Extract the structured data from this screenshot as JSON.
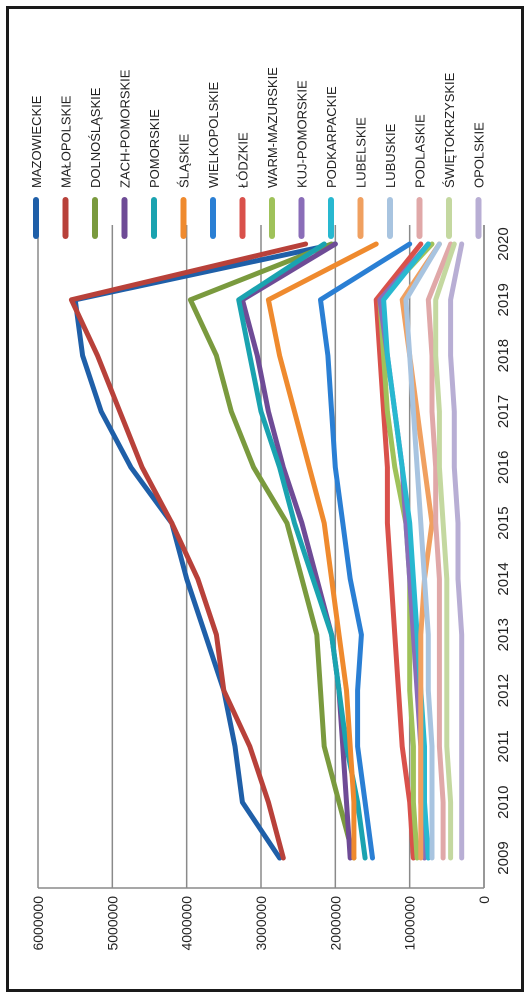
{
  "chart_data": {
    "type": "line",
    "x": [
      "2009",
      "2010",
      "2011",
      "2012",
      "2013",
      "2014",
      "2015",
      "2016",
      "2017",
      "2018",
      "2019",
      "2020"
    ],
    "ylim": [
      0,
      6000000
    ],
    "yticks": [
      "0",
      "1000000",
      "2000000",
      "3000000",
      "4000000",
      "5000000",
      "6000000"
    ],
    "grid": true,
    "legend_position": "top",
    "series": [
      {
        "name": "MAZOWIECKIE",
        "color": "#1f5fa8",
        "values": [
          2750000,
          3250000,
          3350000,
          3500000,
          3750000,
          4000000,
          4200000,
          4750000,
          5150000,
          5400000,
          5500000,
          2000000
        ]
      },
      {
        "name": "MAŁOPOLSKIE",
        "color": "#b8413a",
        "values": [
          2700000,
          2900000,
          3150000,
          3500000,
          3600000,
          3850000,
          4200000,
          4600000,
          4900000,
          5200000,
          5550000,
          2400000
        ]
      },
      {
        "name": "DOLNOŚLĄSKIE",
        "color": "#7a9a3e",
        "values": [
          1750000,
          1950000,
          2150000,
          2200000,
          2250000,
          2450000,
          2650000,
          3100000,
          3400000,
          3600000,
          3950000,
          2050000
        ]
      },
      {
        "name": "ZACH-POMORSKIE",
        "color": "#6e4b96",
        "values": [
          1800000,
          1850000,
          1900000,
          1950000,
          2050000,
          2250000,
          2450000,
          2700000,
          2900000,
          3050000,
          3250000,
          2000000
        ]
      },
      {
        "name": "POMORSKIE",
        "color": "#1aa3b0",
        "values": [
          1600000,
          1700000,
          1850000,
          1950000,
          2050000,
          2300000,
          2550000,
          2750000,
          3000000,
          3150000,
          3300000,
          2150000
        ]
      },
      {
        "name": "ŚLĄSKIE",
        "color": "#ef8a2e",
        "values": [
          1750000,
          1750000,
          1800000,
          1850000,
          1950000,
          2050000,
          2150000,
          2350000,
          2550000,
          2750000,
          2900000,
          1450000
        ]
      },
      {
        "name": "WIELKOPOLSKIE",
        "color": "#2a7fd4",
        "values": [
          1500000,
          1600000,
          1700000,
          1700000,
          1650000,
          1800000,
          1900000,
          2000000,
          2050000,
          2100000,
          2200000,
          1000000
        ]
      },
      {
        "name": "ŁÓDZKIE",
        "color": "#d9514b",
        "values": [
          950000,
          1000000,
          1100000,
          1150000,
          1200000,
          1250000,
          1300000,
          1300000,
          1350000,
          1400000,
          1450000,
          850000
        ]
      },
      {
        "name": "WARM-MAZURSKIE",
        "color": "#9fc25a",
        "values": [
          900000,
          950000,
          950000,
          1000000,
          1000000,
          1000000,
          1050000,
          1200000,
          1300000,
          1350000,
          1400000,
          700000
        ]
      },
      {
        "name": "KUJ-POMORSKIE",
        "color": "#8a6db8",
        "values": [
          800000,
          850000,
          850000,
          900000,
          950000,
          1000000,
          1050000,
          1100000,
          1200000,
          1300000,
          1400000,
          750000
        ]
      },
      {
        "name": "PODKARPACKIE",
        "color": "#28b8d0",
        "values": [
          750000,
          800000,
          800000,
          850000,
          900000,
          950000,
          1000000,
          1100000,
          1200000,
          1300000,
          1350000,
          750000
        ]
      },
      {
        "name": "LUBELSKIE",
        "color": "#f0a060",
        "values": [
          850000,
          850000,
          850000,
          850000,
          850000,
          800000,
          700000,
          800000,
          900000,
          1000000,
          1100000,
          600000
        ]
      },
      {
        "name": "LUBUSKIE",
        "color": "#a8c4e0",
        "values": [
          700000,
          700000,
          700000,
          750000,
          750000,
          800000,
          850000,
          900000,
          950000,
          1000000,
          1050000,
          600000
        ]
      },
      {
        "name": "PODLASKIE",
        "color": "#e0a8a8",
        "values": [
          550000,
          550000,
          600000,
          600000,
          600000,
          600000,
          650000,
          650000,
          700000,
          700000,
          750000,
          450000
        ]
      },
      {
        "name": "ŚWIĘTOKRZYSKIE",
        "color": "#c4d8a0",
        "values": [
          450000,
          450000,
          500000,
          500000,
          500000,
          500000,
          550000,
          600000,
          600000,
          650000,
          650000,
          400000
        ]
      },
      {
        "name": "OPOLSKIE",
        "color": "#b8aed4",
        "values": [
          300000,
          300000,
          300000,
          300000,
          300000,
          350000,
          350000,
          400000,
          400000,
          450000,
          450000,
          300000
        ]
      }
    ]
  }
}
